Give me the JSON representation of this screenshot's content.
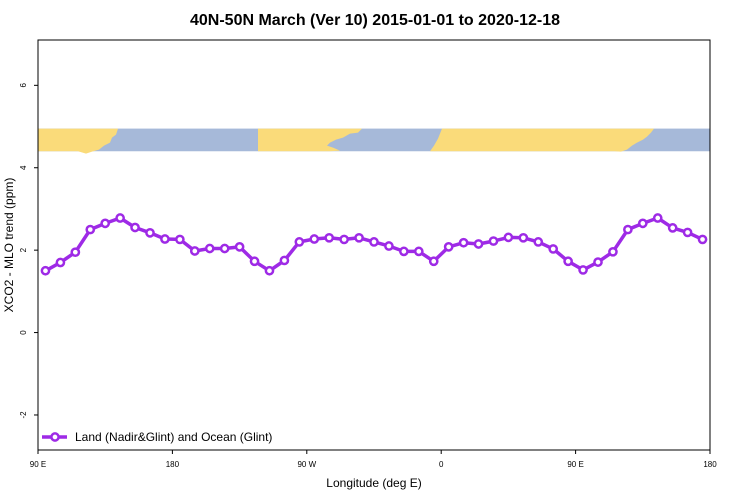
{
  "chart_data": {
    "type": "line",
    "title": "40N-50N March (Ver 10)   2015-01-01 to 2020-12-18",
    "xlabel": "Longitude (deg E)",
    "ylabel": "XCO2 - MLO trend (ppm)",
    "xlim": [
      90,
      540
    ],
    "ylim": [
      -2.85,
      7.1
    ],
    "x_ticks": [
      {
        "value": 90,
        "label": "90 E"
      },
      {
        "value": 180,
        "label": "180"
      },
      {
        "value": 270,
        "label": "90 W"
      },
      {
        "value": 360,
        "label": "0"
      },
      {
        "value": 450,
        "label": "90 E"
      },
      {
        "value": 540,
        "label": "180"
      }
    ],
    "y_ticks": [
      {
        "value": -2,
        "label": "-2"
      },
      {
        "value": 0,
        "label": "0"
      },
      {
        "value": 2,
        "label": "2"
      },
      {
        "value": 4,
        "label": "4"
      },
      {
        "value": 6,
        "label": "6"
      }
    ],
    "map_strip": {
      "ymin": 4.4,
      "ymax": 4.95,
      "ocean_color": "#a6b9d9",
      "land_color": "#fadb7a"
    },
    "series": [
      {
        "name": "Land (Nadir&Glint) and Ocean (Glint)",
        "color": "#9e2ae6",
        "x": [
          95,
          105,
          115,
          125,
          135,
          145,
          155,
          165,
          175,
          185,
          195,
          205,
          215,
          225,
          235,
          245,
          255,
          265,
          275,
          285,
          295,
          305,
          315,
          325,
          335,
          345,
          355,
          365,
          375,
          385,
          395,
          405,
          415,
          425,
          435,
          445,
          455,
          465,
          475,
          485,
          495,
          505,
          515,
          525,
          535
        ],
        "values": [
          1.5,
          1.7,
          1.95,
          2.5,
          2.65,
          2.78,
          2.55,
          2.42,
          2.27,
          2.26,
          1.98,
          2.04,
          2.04,
          2.08,
          1.73,
          1.5,
          1.75,
          2.2,
          2.27,
          2.3,
          2.26,
          2.3,
          2.2,
          2.1,
          1.97,
          1.97,
          1.73,
          2.08,
          2.18,
          2.15,
          2.22,
          2.31,
          2.3,
          2.2,
          2.03,
          1.73,
          1.52,
          1.71,
          1.96,
          2.5,
          2.65,
          2.78,
          2.54,
          2.43,
          2.26
        ]
      }
    ]
  },
  "legend": {
    "label": "Land (Nadir&Glint) and Ocean (Glint)"
  }
}
